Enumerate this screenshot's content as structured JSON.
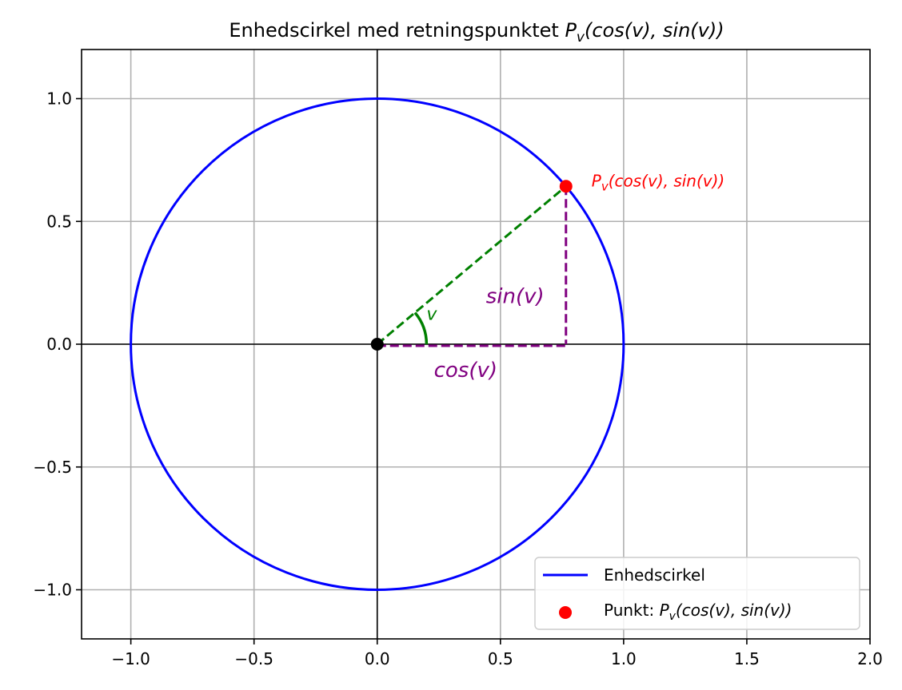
{
  "chart_data": {
    "type": "line",
    "title": {
      "plain": "Enhedscirkel med retningspunktet ",
      "math": "P_v(cos(v), sin(v))"
    },
    "xlabel": "",
    "ylabel": "",
    "xlim": [
      -1.2,
      2.0
    ],
    "ylim": [
      -1.2,
      1.2
    ],
    "xticks": [
      -1.0,
      -0.5,
      0.0,
      0.5,
      1.0,
      1.5,
      2.0
    ],
    "yticks": [
      -1.0,
      -0.5,
      0.0,
      0.5,
      1.0
    ],
    "xtick_labels": [
      "−1.0",
      "−0.5",
      "0.0",
      "0.5",
      "1.0",
      "1.5",
      "2.0"
    ],
    "ytick_labels": [
      "−1.0",
      "−0.5",
      "0.0",
      "0.5",
      "1.0"
    ],
    "grid": true,
    "angle_v_degrees": 40,
    "circle": {
      "center": [
        0,
        0
      ],
      "radius": 1,
      "color": "#0000ff"
    },
    "origin": {
      "x": 0,
      "y": 0,
      "color": "#000000"
    },
    "point": {
      "x": 0.766,
      "y": 0.643,
      "color": "#ff0000"
    },
    "radius_line_color": "#008000",
    "projection_color": "#800080",
    "angle_arc_radius": 0.2,
    "annotations": {
      "point_label": "P_v(cos(v), sin(v))",
      "sin_label": "sin(v)",
      "cos_label": "cos(v)",
      "angle_label": "v"
    },
    "legend": {
      "placement": "lower-right",
      "entries": [
        {
          "kind": "line",
          "label_plain": "Enhedscirkel",
          "label_math": "",
          "color": "#0000ff"
        },
        {
          "kind": "marker",
          "label_plain": "Punkt: ",
          "label_math": "P_v(cos(v), sin(v))",
          "color": "#ff0000"
        }
      ]
    }
  }
}
